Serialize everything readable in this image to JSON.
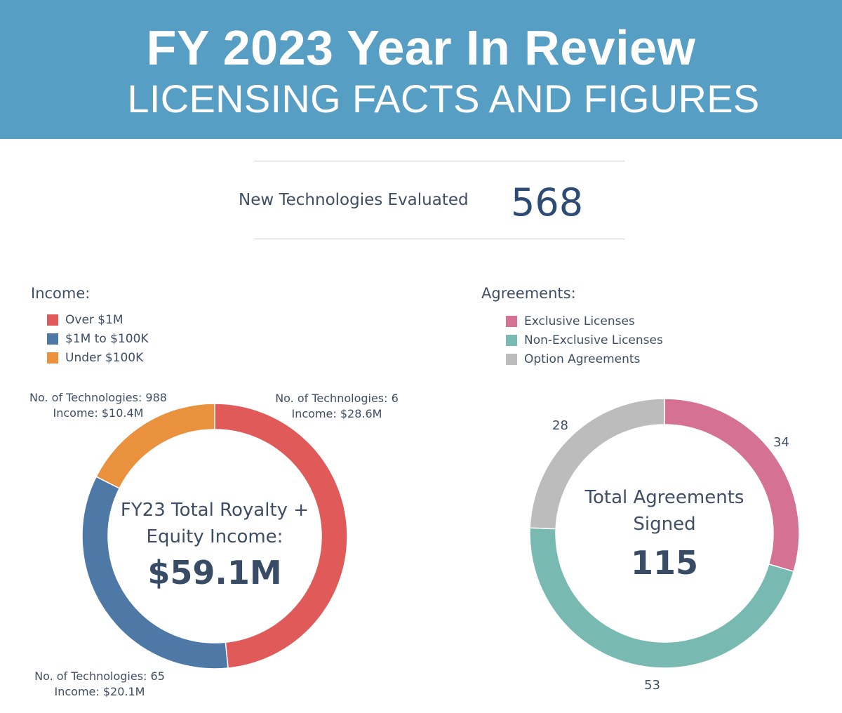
{
  "banner": {
    "title": "FY 2023 Year In Review",
    "subtitle": "LICENSING FACTS AND FIGURES"
  },
  "kpi": {
    "label": "New Technologies Evaluated",
    "value": "568"
  },
  "colors": {
    "banner": "#579ec5",
    "over_1m": "#e05a59",
    "mid": "#4e79a7",
    "under_100k": "#e9913c",
    "exclusive": "#d57193",
    "non_exclusive": "#78b9b2",
    "option": "#bcbcbc"
  },
  "chart_data": [
    {
      "type": "pie",
      "legend_title": "Income:",
      "legend_placement": "top-left",
      "categories": [
        "Over $1M",
        "$1M to $100K",
        "Under $100K"
      ],
      "values": [
        28.6,
        20.1,
        10.4
      ],
      "series": [
        {
          "name": "No. of Technologies",
          "values": [
            6,
            65,
            988
          ]
        },
        {
          "name": "Income",
          "values": [
            28.6,
            20.1,
            10.4
          ]
        }
      ],
      "annotations": [
        {
          "line1": "No. of Technologies: 6",
          "line2": "Income: $28.6M"
        },
        {
          "line1": "No. of Technologies: 65",
          "line2": "Income: $20.1M"
        },
        {
          "line1": "No. of Technologies: 988",
          "line2": "Income: $10.4M"
        }
      ],
      "center": {
        "line1": "FY23 Total Royalty +",
        "line2": "Equity Income:",
        "value": "$59.1M"
      }
    },
    {
      "type": "pie",
      "legend_title": "Agreements:",
      "legend_placement": "top-right",
      "categories": [
        "Exclusive Licenses",
        "Non-Exclusive Licenses",
        "Option Agreements"
      ],
      "values": [
        34,
        53,
        28
      ],
      "data_labels": [
        "34",
        "53",
        "28"
      ],
      "center": {
        "line1": "Total Agreements",
        "line2": "Signed",
        "value": "115"
      }
    }
  ]
}
